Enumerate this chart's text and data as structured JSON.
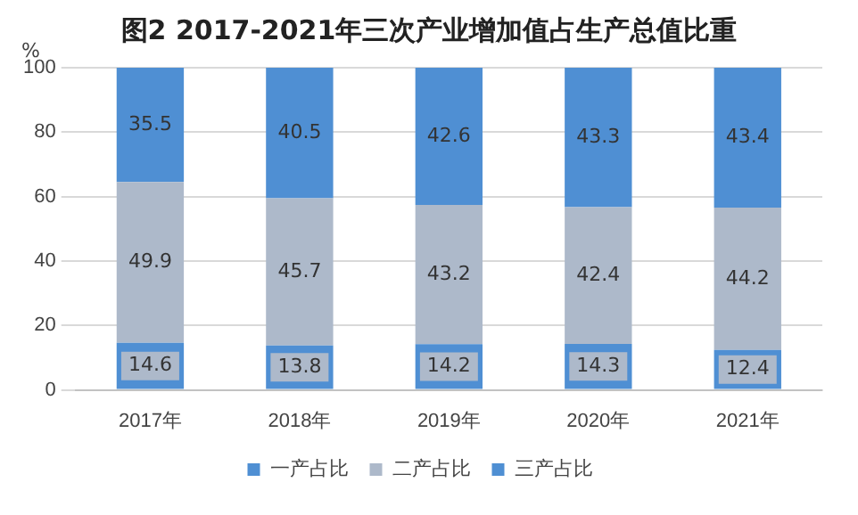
{
  "chart_data": {
    "type": "bar",
    "title": "图2 2017-2021年三次产业增加值占生产总值比重",
    "ylabel": "%",
    "categories": [
      "2017年",
      "2018年",
      "2019年",
      "2020年",
      "2021年"
    ],
    "series": [
      {
        "name": "一产占比",
        "color": "#4f8fd3",
        "values": [
          14.6,
          13.8,
          14.2,
          14.3,
          12.4
        ]
      },
      {
        "name": "二产占比",
        "color": "#adb9ca",
        "values": [
          49.9,
          45.7,
          43.2,
          42.4,
          44.2
        ]
      },
      {
        "name": "三产占比",
        "color": "#4f8fd3",
        "values": [
          35.5,
          40.5,
          42.6,
          43.3,
          43.4
        ]
      }
    ],
    "stacked": true,
    "ylim": [
      0,
      100
    ],
    "yticks": [
      0,
      20,
      40,
      60,
      80,
      100
    ],
    "grid": "y",
    "legend": "bottom",
    "data_labels": true
  }
}
